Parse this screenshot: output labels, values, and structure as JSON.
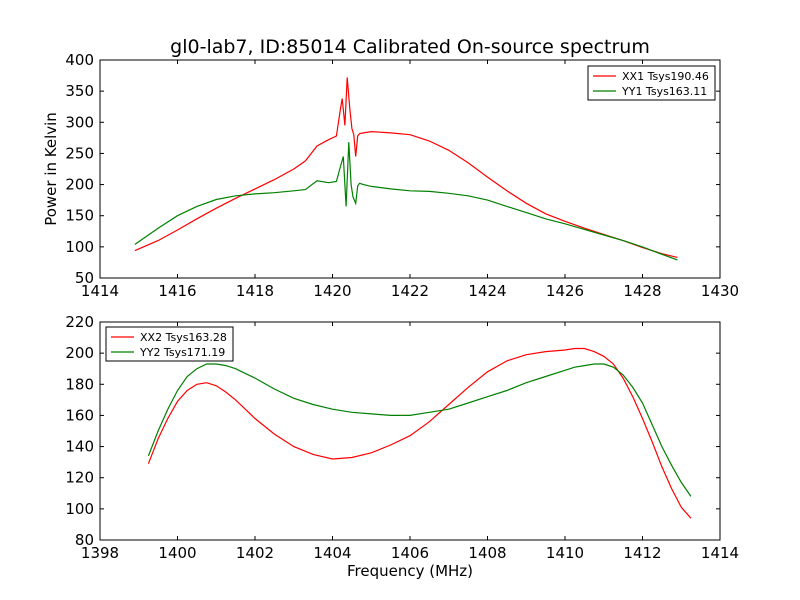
{
  "figure": {
    "title": "gl0-lab7, ID:85014 Calibrated On-source spectrum"
  },
  "chart_data": [
    {
      "type": "line",
      "title": "gl0-lab7, ID:85014 Calibrated On-source spectrum",
      "xlabel": "",
      "ylabel": "Power in Kelvin",
      "xlim": [
        1414,
        1430
      ],
      "ylim": [
        50,
        400
      ],
      "xticks": [
        1414,
        1416,
        1418,
        1420,
        1422,
        1424,
        1426,
        1428,
        1430
      ],
      "yticks": [
        50,
        100,
        150,
        200,
        250,
        300,
        350,
        400
      ],
      "grid": false,
      "legend_position": "top-right",
      "series": [
        {
          "name": "XX1 Tsys190.46",
          "color": "#ff0000",
          "x": [
            1414.9,
            1415.5,
            1416.0,
            1416.5,
            1417.0,
            1417.5,
            1418.0,
            1418.5,
            1419.0,
            1419.3,
            1419.6,
            1419.9,
            1420.1,
            1420.2,
            1420.25,
            1420.32,
            1420.38,
            1420.45,
            1420.5,
            1420.55,
            1420.6,
            1420.65,
            1420.7,
            1420.8,
            1421.0,
            1421.5,
            1422.0,
            1422.5,
            1423.0,
            1423.5,
            1424.0,
            1424.5,
            1425.0,
            1425.5,
            1426.0,
            1426.5,
            1427.0,
            1427.5,
            1428.0,
            1428.5,
            1428.9
          ],
          "y": [
            94,
            110,
            127,
            145,
            162,
            178,
            193,
            208,
            225,
            238,
            262,
            272,
            278,
            320,
            338,
            295,
            372,
            320,
            290,
            280,
            245,
            278,
            282,
            283,
            285,
            283,
            280,
            270,
            255,
            235,
            212,
            190,
            170,
            153,
            141,
            130,
            120,
            110,
            99,
            89,
            83
          ]
        },
        {
          "name": "YY1 Tsys163.11",
          "color": "#008000",
          "x": [
            1414.9,
            1415.5,
            1416.0,
            1416.5,
            1417.0,
            1417.5,
            1418.0,
            1418.5,
            1419.0,
            1419.3,
            1419.6,
            1419.9,
            1420.1,
            1420.2,
            1420.28,
            1420.35,
            1420.42,
            1420.48,
            1420.53,
            1420.6,
            1420.65,
            1420.7,
            1420.8,
            1421.0,
            1421.5,
            1422.0,
            1422.5,
            1423.0,
            1423.5,
            1424.0,
            1424.5,
            1425.0,
            1425.5,
            1426.0,
            1426.5,
            1427.0,
            1427.5,
            1428.0,
            1428.5,
            1428.9
          ],
          "y": [
            104,
            130,
            150,
            165,
            176,
            182,
            185,
            187,
            190,
            192,
            206,
            203,
            205,
            228,
            245,
            165,
            268,
            200,
            180,
            170,
            198,
            202,
            200,
            197,
            193,
            190,
            189,
            186,
            182,
            175,
            165,
            155,
            145,
            137,
            128,
            119,
            110,
            100,
            88,
            79
          ]
        }
      ]
    },
    {
      "type": "line",
      "title": "",
      "xlabel": "Frequency (MHz)",
      "ylabel": "",
      "xlim": [
        1398,
        1414
      ],
      "ylim": [
        80,
        220
      ],
      "xticks": [
        1398,
        1400,
        1402,
        1404,
        1406,
        1408,
        1410,
        1412,
        1414
      ],
      "yticks": [
        80,
        100,
        120,
        140,
        160,
        180,
        200,
        220
      ],
      "grid": false,
      "legend_position": "top-left",
      "series": [
        {
          "name": "XX2 Tsys163.28",
          "color": "#ff0000",
          "x": [
            1399.25,
            1399.5,
            1399.75,
            1400.0,
            1400.25,
            1400.5,
            1400.75,
            1401.0,
            1401.25,
            1401.5,
            1401.75,
            1402.0,
            1402.5,
            1403.0,
            1403.5,
            1404.0,
            1404.5,
            1405.0,
            1405.5,
            1406.0,
            1406.5,
            1407.0,
            1407.5,
            1408.0,
            1408.5,
            1409.0,
            1409.5,
            1410.0,
            1410.25,
            1410.5,
            1410.75,
            1411.0,
            1411.25,
            1411.5,
            1411.75,
            1412.0,
            1412.25,
            1412.5,
            1412.75,
            1413.0,
            1413.25
          ],
          "y": [
            129,
            145,
            158,
            169,
            176,
            180,
            181,
            179,
            175,
            170,
            164,
            158,
            148,
            140,
            135,
            132,
            133,
            136,
            141,
            147,
            156,
            167,
            178,
            188,
            195,
            199,
            201,
            202,
            203,
            203,
            201,
            198,
            193,
            184,
            172,
            158,
            143,
            127,
            113,
            101,
            94
          ]
        },
        {
          "name": "YY2 Tsys171.19",
          "color": "#008000",
          "x": [
            1399.25,
            1399.5,
            1399.75,
            1400.0,
            1400.25,
            1400.5,
            1400.75,
            1401.0,
            1401.25,
            1401.5,
            1401.75,
            1402.0,
            1402.5,
            1403.0,
            1403.5,
            1404.0,
            1404.5,
            1405.0,
            1405.5,
            1406.0,
            1406.5,
            1407.0,
            1407.5,
            1408.0,
            1408.5,
            1409.0,
            1409.5,
            1410.0,
            1410.25,
            1410.5,
            1410.75,
            1411.0,
            1411.25,
            1411.5,
            1411.75,
            1412.0,
            1412.25,
            1412.5,
            1412.75,
            1413.0,
            1413.25
          ],
          "y": [
            134,
            150,
            164,
            176,
            185,
            190,
            193,
            193,
            192,
            190,
            187,
            184,
            177,
            171,
            167,
            164,
            162,
            161,
            160,
            160,
            162,
            164,
            168,
            172,
            176,
            181,
            185,
            189,
            191,
            192,
            193,
            193,
            191,
            186,
            178,
            168,
            154,
            140,
            128,
            117,
            108
          ]
        }
      ]
    }
  ]
}
